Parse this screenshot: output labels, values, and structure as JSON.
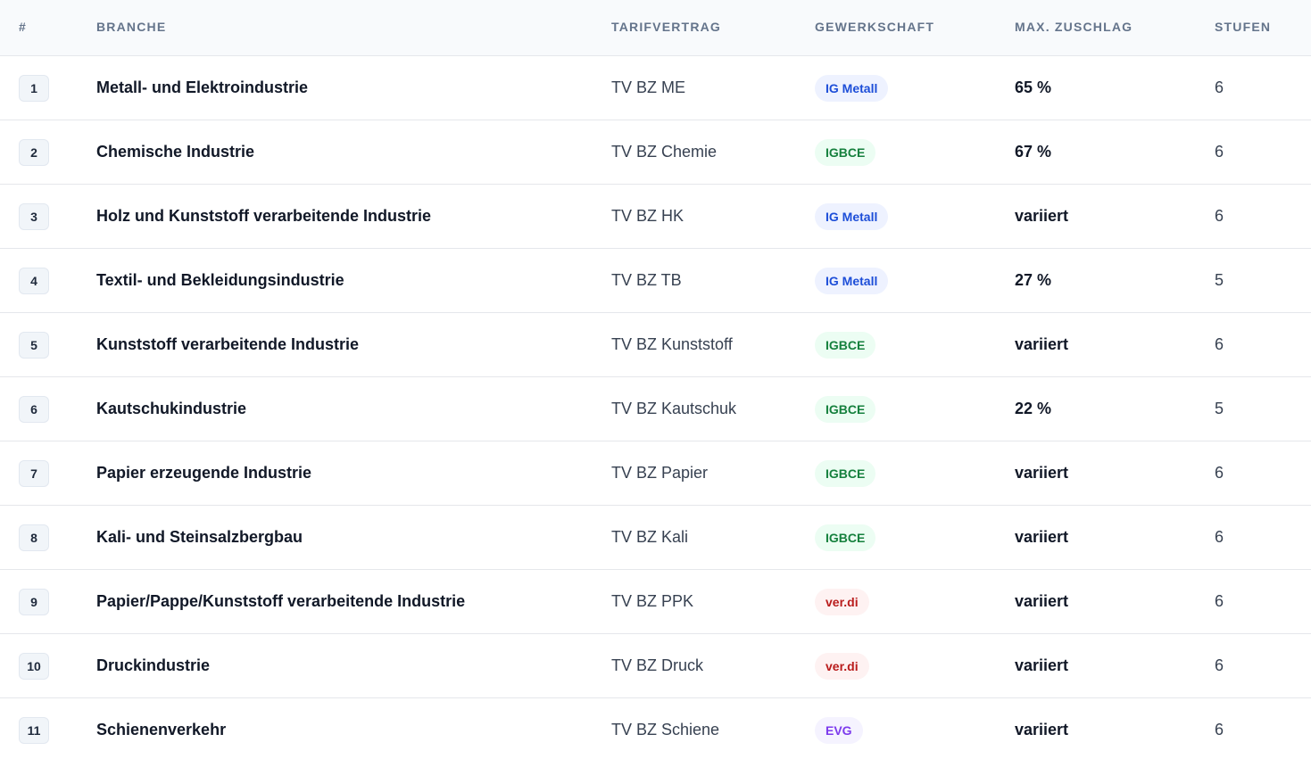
{
  "header": {
    "num": "#",
    "branche": "BRANCHE",
    "tarifvertrag": "TARIFVERTRAG",
    "gewerkschaft": "GEWERKSCHAFT",
    "zuschlag": "MAX. ZUSCHLAG",
    "stufen": "STUFEN"
  },
  "rows": [
    {
      "num": "1",
      "branche": "Metall- und Elektroindustrie",
      "tarif": "TV BZ ME",
      "gewerkschaft": "IG Metall",
      "gw_style": "igm",
      "zuschlag": "65 %",
      "stufen": "6"
    },
    {
      "num": "2",
      "branche": "Chemische Industrie",
      "tarif": "TV BZ Chemie",
      "gewerkschaft": "IGBCE",
      "gw_style": "igb",
      "zuschlag": "67 %",
      "stufen": "6"
    },
    {
      "num": "3",
      "branche": "Holz und Kunststoff verarbeitende Industrie",
      "tarif": "TV BZ HK",
      "gewerkschaft": "IG Metall",
      "gw_style": "igm",
      "zuschlag": "variiert",
      "stufen": "6"
    },
    {
      "num": "4",
      "branche": "Textil- und Bekleidungsindustrie",
      "tarif": "TV BZ TB",
      "gewerkschaft": "IG Metall",
      "gw_style": "igm",
      "zuschlag": "27 %",
      "stufen": "5"
    },
    {
      "num": "5",
      "branche": "Kunststoff verarbeitende Industrie",
      "tarif": "TV BZ Kunststoff",
      "gewerkschaft": "IGBCE",
      "gw_style": "igb",
      "zuschlag": "variiert",
      "stufen": "6"
    },
    {
      "num": "6",
      "branche": "Kautschukindustrie",
      "tarif": "TV BZ Kautschuk",
      "gewerkschaft": "IGBCE",
      "gw_style": "igb",
      "zuschlag": "22 %",
      "stufen": "5"
    },
    {
      "num": "7",
      "branche": "Papier erzeugende Industrie",
      "tarif": "TV BZ Papier",
      "gewerkschaft": "IGBCE",
      "gw_style": "igb",
      "zuschlag": "variiert",
      "stufen": "6"
    },
    {
      "num": "8",
      "branche": "Kali- und Steinsalzbergbau",
      "tarif": "TV BZ Kali",
      "gewerkschaft": "IGBCE",
      "gw_style": "igb",
      "zuschlag": "variiert",
      "stufen": "6"
    },
    {
      "num": "9",
      "branche": "Papier/Pappe/Kunststoff verarbeitende Industrie",
      "tarif": "TV BZ PPK",
      "gewerkschaft": "ver.di",
      "gw_style": "ver",
      "zuschlag": "variiert",
      "stufen": "6"
    },
    {
      "num": "10",
      "branche": "Druckindustrie",
      "tarif": "TV BZ Druck",
      "gewerkschaft": "ver.di",
      "gw_style": "ver",
      "zuschlag": "variiert",
      "stufen": "6"
    },
    {
      "num": "11",
      "branche": "Schienenverkehr",
      "tarif": "TV BZ Schiene",
      "gewerkschaft": "EVG",
      "gw_style": "evg",
      "zuschlag": "variiert",
      "stufen": "6"
    }
  ]
}
